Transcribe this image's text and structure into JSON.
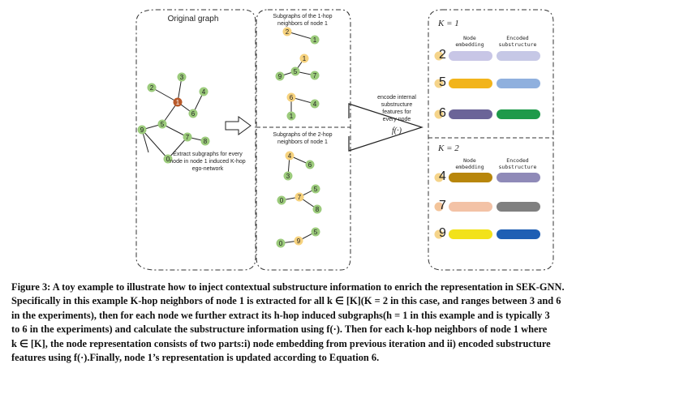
{
  "figure": {
    "original_graph_title": "Original graph",
    "one_hop_title": [
      "Subgraphs of the 1-hop",
      "neighbors of node 1"
    ],
    "two_hop_title": [
      "Subgraphs of the 2-hop",
      "neighbors of node 1"
    ],
    "extract_text": [
      "Extract subgraphs for every",
      "node in node 1 induced K-hop",
      "ego-network"
    ],
    "encode_text": [
      "encode internal",
      "substructure",
      "features for",
      "every node"
    ],
    "func_label": "f(·)",
    "original_nodes": [
      "1",
      "2",
      "3",
      "4",
      "5",
      "6",
      "7",
      "8",
      "9",
      "0"
    ],
    "one_hop_subgraphs": [
      [
        "2",
        "1"
      ],
      [
        "1",
        "5",
        "9",
        "7"
      ],
      [
        "6",
        "1",
        "4"
      ]
    ],
    "two_hop_subgraphs": [
      [
        "4",
        "3",
        "6"
      ],
      [
        "7",
        "5",
        "0",
        "8"
      ],
      [
        "9",
        "5",
        "0"
      ]
    ],
    "k1_label": "K = 1",
    "k2_label": "K = 2",
    "col_node_embedding": [
      "Node",
      "embedding"
    ],
    "col_encoded_substructure": [
      "Encoded",
      "substructure"
    ],
    "k1_rows": [
      {
        "node": "2",
        "node_color": "#f5d48a",
        "emb_color": "#c8c6e6",
        "sub_color": "#c6c8e6"
      },
      {
        "node": "5",
        "node_color": "#f5d48a",
        "emb_color": "#f2b41b",
        "sub_color": "#8fb0de"
      },
      {
        "node": "6",
        "node_color": "#f5d48a",
        "emb_color": "#6b6498",
        "sub_color": "#1e9a4a"
      }
    ],
    "k2_rows": [
      {
        "node": "4",
        "node_color": "#f5d48a",
        "emb_color": "#b8860b",
        "sub_color": "#8f8ab8"
      },
      {
        "node": "7",
        "node_color": "#f3c49a",
        "emb_color": "#f3c2a6",
        "sub_color": "#808080"
      },
      {
        "node": "9",
        "node_color": "#f5d48a",
        "emb_color": "#f2e21a",
        "sub_color": "#1f5fb4"
      }
    ],
    "colors": {
      "green_node": "#9ccb7c",
      "orange_node": "#f6d27e",
      "center_node": "#b8592a"
    }
  },
  "caption": {
    "lines": [
      "Figure 3: A toy example to illustrate how to inject contextual substructure information to enrich the representation in SEK-GNN.",
      "Specifically in this example K-hop neighbors of node 1 is extracted for all k ∈ [K](K = 2 in this case, and ranges between 3 and 6",
      "in the experiments), then for each node we further extract its h-hop induced subgraphs(h = 1 in this example and is typically 3",
      "to 6 in the experiments) and calculate the substructure information using f(·). Then for each k-hop neighbors of node 1 where",
      "k ∈ [K], the node representation consists of two parts:i) node embedding from previous iteration and ii) encoded substructure",
      "features using f(·).Finally, node 1’s representation is updated according to Equation 6."
    ]
  }
}
